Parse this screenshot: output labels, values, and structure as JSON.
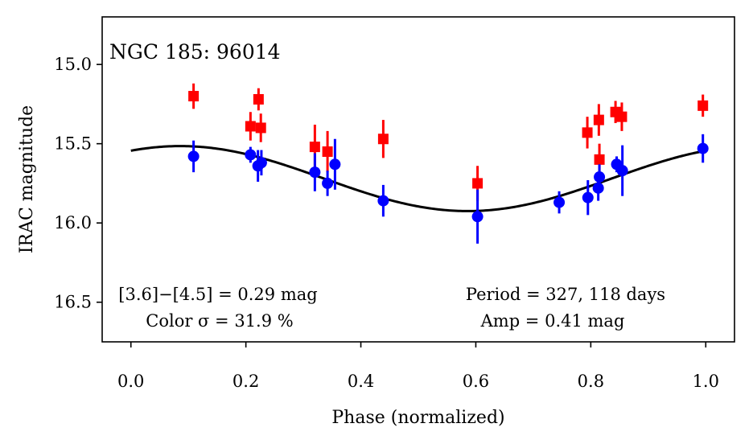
{
  "chart_data": {
    "type": "scatter",
    "title": "NGC 185:  96014",
    "xlabel": "Phase (normalized)",
    "ylabel": "IRAC magnitude",
    "xlim": [
      -0.05,
      1.05
    ],
    "ylim": [
      16.75,
      14.7
    ],
    "y_inverted": true,
    "grid": false,
    "xticks": [
      "0.0",
      "0.2",
      "0.4",
      "0.6",
      "0.8",
      "1.0"
    ],
    "xtick_values": [
      0.0,
      0.2,
      0.4,
      0.6,
      0.8,
      1.0
    ],
    "yticks": [
      "15.0",
      "15.5",
      "16.0",
      "16.5"
    ],
    "ytick_values": [
      15.0,
      15.5,
      16.0,
      16.5
    ],
    "annotations": {
      "color_line1": "[3.6]−[4.5] = 0.29 mag",
      "color_line2": "Color σ = 31.9 %",
      "period_line1": "Period = 327, 118 days",
      "period_line2": "Amp = 0.41 mag"
    },
    "series": [
      {
        "name": "[4.5]",
        "marker": "square",
        "color": "#ff0000",
        "x": [
          0.109,
          0.208,
          0.222,
          0.226,
          0.32,
          0.342,
          0.439,
          0.603,
          0.794,
          0.814,
          0.815,
          0.843,
          0.854,
          0.995
        ],
        "y": [
          15.2,
          15.39,
          15.22,
          15.4,
          15.52,
          15.55,
          15.47,
          15.75,
          15.43,
          15.35,
          15.6,
          15.3,
          15.33,
          15.26
        ],
        "yerr": [
          0.08,
          0.09,
          0.07,
          0.09,
          0.14,
          0.13,
          0.12,
          0.11,
          0.1,
          0.1,
          0.1,
          0.07,
          0.09,
          0.07
        ]
      },
      {
        "name": "[3.6]",
        "marker": "circle",
        "color": "#0000ff",
        "x": [
          0.109,
          0.208,
          0.221,
          0.227,
          0.32,
          0.342,
          0.355,
          0.439,
          0.603,
          0.745,
          0.795,
          0.813,
          0.815,
          0.845,
          0.855,
          0.995
        ],
        "y": [
          15.58,
          15.57,
          15.64,
          15.62,
          15.68,
          15.75,
          15.63,
          15.86,
          15.96,
          15.87,
          15.84,
          15.78,
          15.71,
          15.63,
          15.67,
          15.53
        ],
        "yerr": [
          0.1,
          0.05,
          0.1,
          0.08,
          0.12,
          0.08,
          0.16,
          0.1,
          0.17,
          0.07,
          0.11,
          0.08,
          0.08,
          0.05,
          0.16,
          0.09
        ]
      },
      {
        "name": "fit",
        "type": "line",
        "color": "#000000",
        "model": "sinusoid",
        "mean": 15.72,
        "amplitude": 0.205,
        "phase_of_max_brightness": 0.086
      }
    ]
  }
}
